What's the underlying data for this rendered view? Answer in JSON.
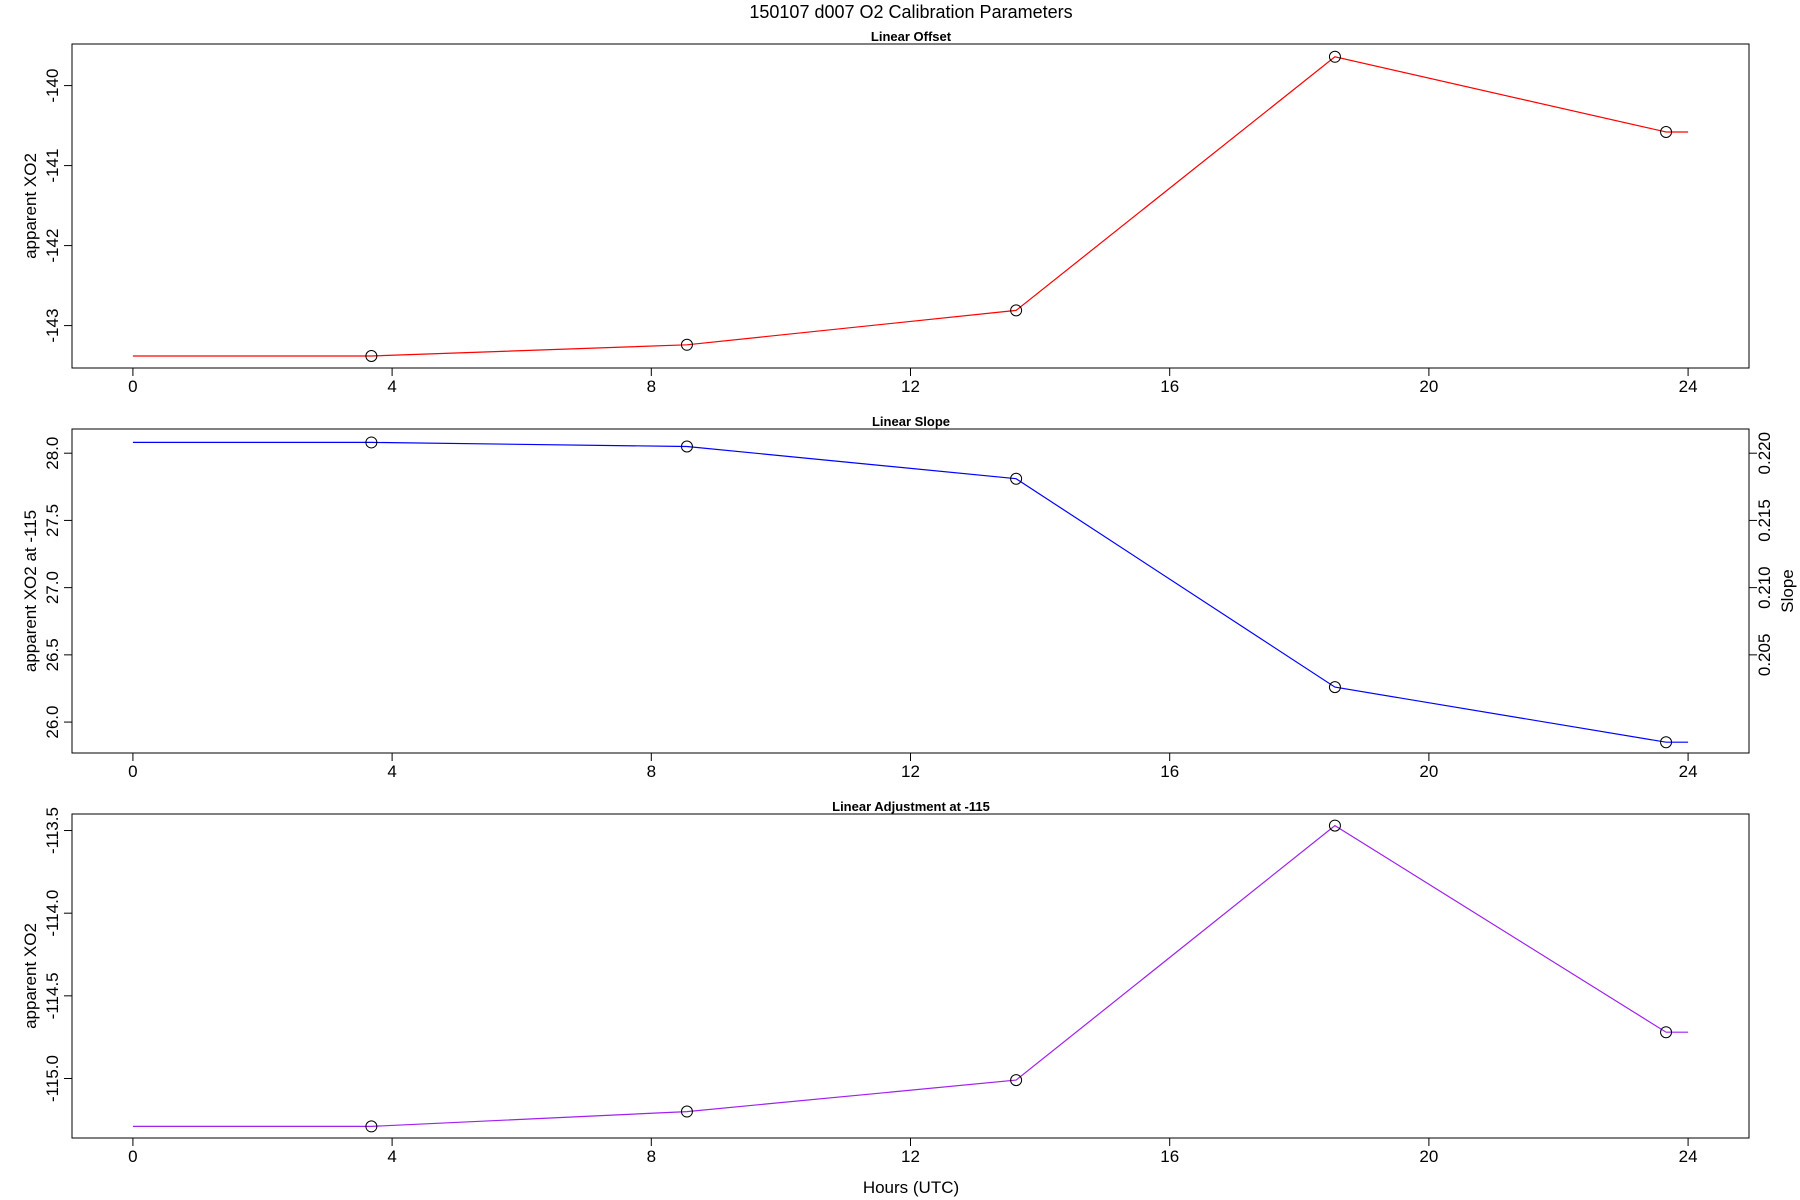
{
  "chart_data": {
    "title": "150107   d007   O2 Calibration Parameters",
    "xlabel": "Hours (UTC)",
    "x_ticks": [
      0,
      4,
      8,
      12,
      16,
      20,
      24
    ],
    "panels": [
      {
        "type": "line",
        "title": "Linear Offset",
        "ylabel": "apparent XO2",
        "color": "#ff0000",
        "xlim": [
          -0.94,
          24.94
        ],
        "ylim": [
          -143.53,
          -139.48
        ],
        "y_ticks": [
          -140,
          -141,
          -142,
          -143
        ],
        "y_tick_labels": [
          "-140",
          "-141",
          "-142",
          "-143"
        ],
        "x": [
          3.68,
          8.55,
          13.63,
          18.55,
          23.66
        ],
        "y": [
          -143.38,
          -143.24,
          -142.81,
          -139.64,
          -140.58
        ],
        "line_x": [
          0,
          3.68,
          8.55,
          13.63,
          18.55,
          23.66,
          24
        ],
        "line_y": [
          -143.38,
          -143.38,
          -143.24,
          -142.81,
          -139.64,
          -140.58,
          -140.58
        ]
      },
      {
        "type": "line",
        "title": "Linear Slope",
        "ylabel": "apparent XO2 at -115",
        "y2label": "Slope",
        "color": "#0000ff",
        "xlim": [
          -0.94,
          24.94
        ],
        "ylim": [
          25.77,
          28.18
        ],
        "y_ticks": [
          26.0,
          26.5,
          27.0,
          27.5,
          28.0
        ],
        "y_tick_labels": [
          "26.0",
          "26.5",
          "27.0",
          "27.5",
          "28.0"
        ],
        "y2_ticks": [
          0.205,
          0.21,
          0.215,
          0.22
        ],
        "y2_tick_labels": [
          "0.205",
          "0.210",
          "0.215",
          "0.220"
        ],
        "y2_to_y": {
          "slope": 100.0,
          "intercept": 6.0
        },
        "x": [
          3.68,
          8.55,
          13.63,
          18.55,
          23.66
        ],
        "y": [
          28.08,
          28.05,
          27.81,
          26.26,
          25.85
        ],
        "line_x": [
          0,
          3.68,
          8.55,
          13.63,
          18.55,
          23.66,
          24
        ],
        "line_y": [
          28.08,
          28.08,
          28.05,
          27.81,
          26.26,
          25.85,
          25.85
        ]
      },
      {
        "type": "line",
        "title": "Linear Adjustment at -115",
        "ylabel": "apparent XO2",
        "color": "#a020f0",
        "xlim": [
          -0.94,
          24.94
        ],
        "ylim": [
          -115.36,
          -113.4
        ],
        "y_ticks": [
          -113.5,
          -114.0,
          -114.5,
          -115.0
        ],
        "y_tick_labels": [
          "-113.5",
          "-114.0",
          "-114.5",
          "-115.0"
        ],
        "x": [
          3.68,
          8.55,
          13.63,
          18.55,
          23.66
        ],
        "y": [
          -115.29,
          -115.2,
          -115.01,
          -113.47,
          -114.72
        ],
        "line_x": [
          0,
          3.68,
          8.55,
          13.63,
          18.55,
          23.66,
          24
        ],
        "line_y": [
          -115.29,
          -115.29,
          -115.2,
          -115.01,
          -113.47,
          -114.72,
          -114.72
        ]
      }
    ]
  }
}
